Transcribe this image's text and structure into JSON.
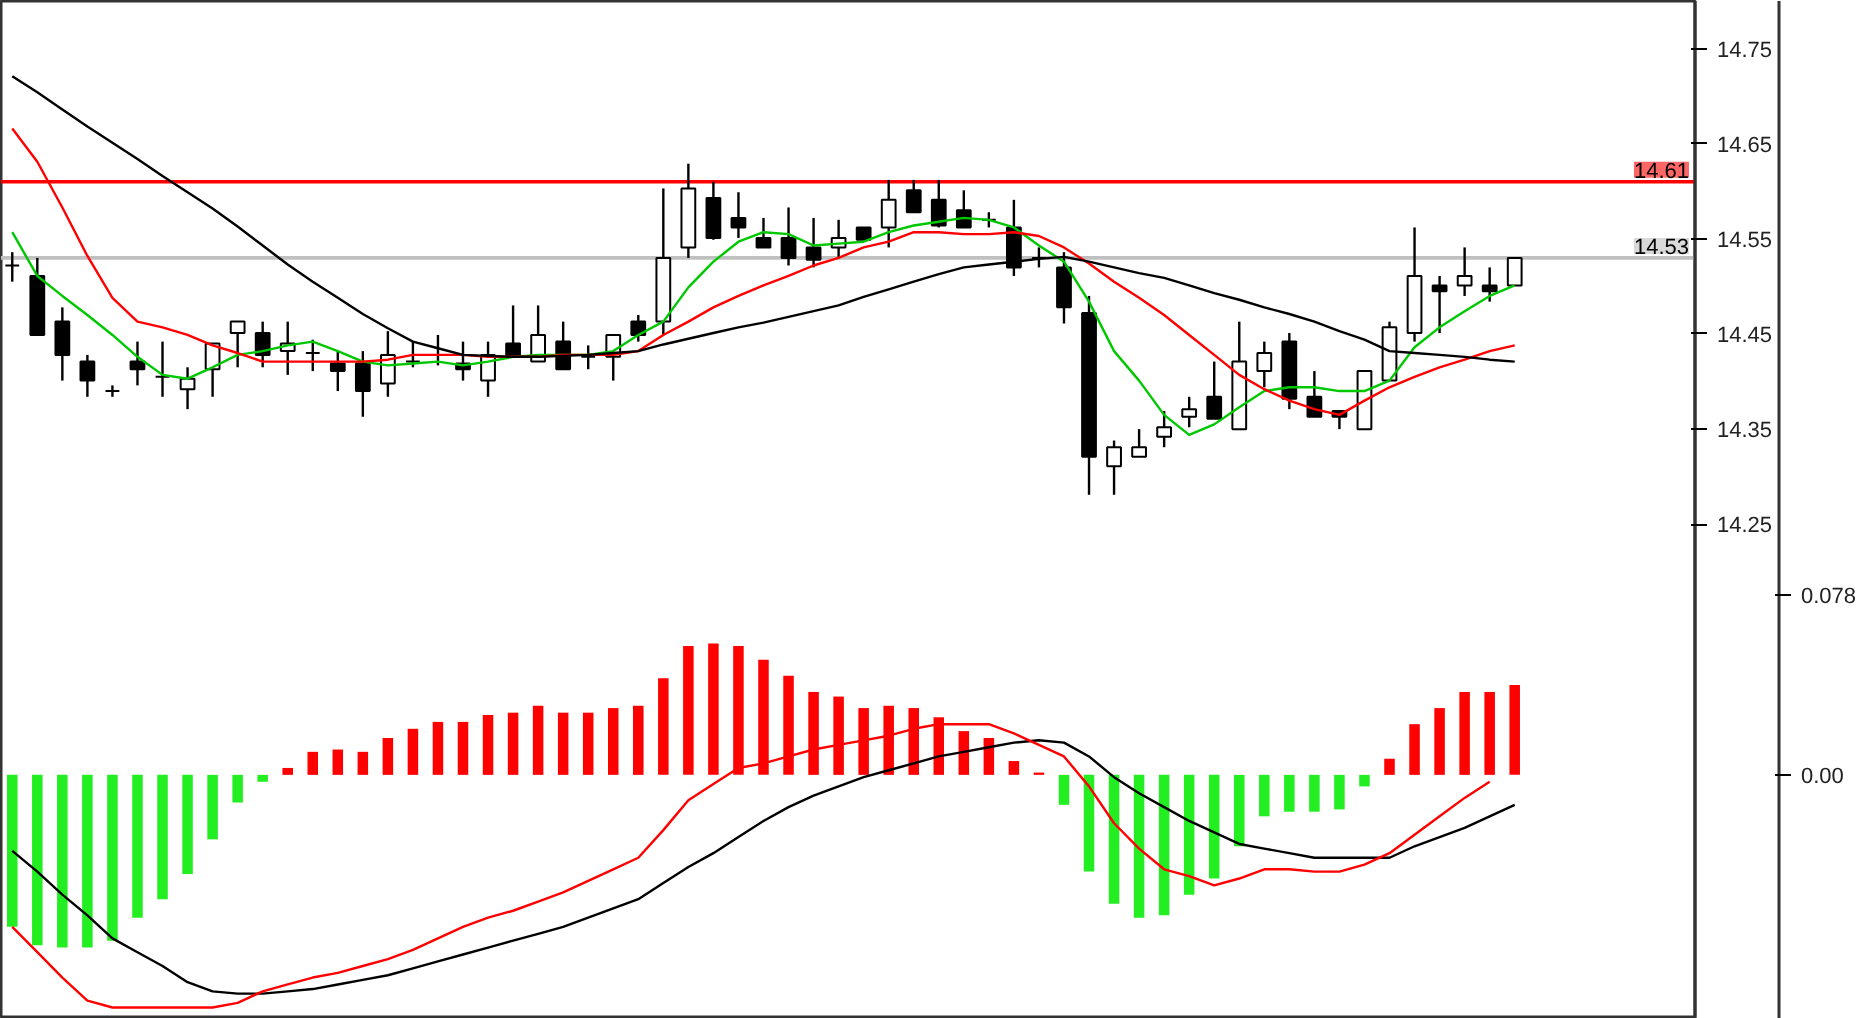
{
  "chart_data": {
    "type": "candlestick",
    "categories": [
      null,
      null,
      null,
      null,
      null,
      null,
      null,
      null,
      null,
      null,
      null,
      null,
      null,
      null,
      null,
      null,
      null,
      null,
      null,
      null,
      null,
      null,
      null,
      null,
      null,
      null,
      null,
      null,
      null,
      null,
      null,
      null,
      null,
      null,
      null,
      null,
      null,
      null,
      null,
      null,
      null,
      null,
      null,
      null,
      null,
      null,
      null,
      null,
      null,
      null,
      null,
      null,
      null,
      null,
      null,
      null,
      null,
      null,
      null,
      null,
      null
    ],
    "ohlc": [
      [
        14.522,
        14.536,
        14.505,
        14.522
      ],
      [
        14.511,
        14.53,
        14.449,
        14.449
      ],
      [
        14.463,
        14.478,
        14.401,
        14.428
      ],
      [
        14.421,
        14.428,
        14.384,
        14.401
      ],
      [
        14.39,
        14.396,
        14.384,
        14.39
      ],
      [
        14.421,
        14.442,
        14.396,
        14.413
      ],
      [
        14.405,
        14.442,
        14.384,
        14.405
      ],
      [
        14.392,
        14.415,
        14.371,
        14.403
      ],
      [
        14.413,
        14.44,
        14.384,
        14.44
      ],
      [
        14.451,
        14.463,
        14.415,
        14.463
      ],
      [
        14.451,
        14.463,
        14.415,
        14.428
      ],
      [
        14.432,
        14.463,
        14.407,
        14.44
      ],
      [
        14.43,
        14.444,
        14.411,
        14.43
      ],
      [
        14.419,
        14.432,
        14.39,
        14.411
      ],
      [
        14.419,
        14.432,
        14.363,
        14.39
      ],
      [
        14.398,
        14.453,
        14.384,
        14.428
      ],
      [
        14.421,
        14.442,
        14.415,
        14.421
      ],
      [
        14.428,
        14.449,
        14.417,
        14.428
      ],
      [
        14.419,
        14.442,
        14.401,
        14.413
      ],
      [
        14.401,
        14.442,
        14.384,
        14.428
      ],
      [
        14.44,
        14.48,
        14.428,
        14.428
      ],
      [
        14.421,
        14.48,
        14.421,
        14.449
      ],
      [
        14.442,
        14.463,
        14.413,
        14.413
      ],
      [
        14.426,
        14.438,
        14.413,
        14.426
      ],
      [
        14.426,
        14.449,
        14.401,
        14.449
      ],
      [
        14.463,
        14.47,
        14.442,
        14.449
      ],
      [
        14.463,
        14.603,
        14.449,
        14.53
      ],
      [
        14.541,
        14.629,
        14.53,
        14.603
      ],
      [
        14.593,
        14.61,
        14.549,
        14.551
      ],
      [
        14.572,
        14.599,
        14.551,
        14.562
      ],
      [
        14.551,
        14.572,
        14.541,
        14.541
      ],
      [
        14.551,
        14.583,
        14.522,
        14.53
      ],
      [
        14.541,
        14.572,
        14.52,
        14.528
      ],
      [
        14.541,
        14.57,
        14.53,
        14.551
      ],
      [
        14.562,
        14.562,
        14.549,
        14.549
      ],
      [
        14.562,
        14.612,
        14.541,
        14.591
      ],
      [
        14.601,
        14.612,
        14.578,
        14.578
      ],
      [
        14.591,
        14.612,
        14.562,
        14.564
      ],
      [
        14.58,
        14.601,
        14.562,
        14.562
      ],
      [
        14.57,
        14.578,
        14.562,
        14.57
      ],
      [
        14.562,
        14.591,
        14.511,
        14.52
      ],
      [
        14.53,
        14.541,
        14.52,
        14.53
      ],
      [
        14.52,
        14.536,
        14.461,
        14.478
      ],
      [
        14.472,
        14.49,
        14.281,
        14.321
      ],
      [
        14.311,
        14.338,
        14.281,
        14.331
      ],
      [
        14.321,
        14.35,
        14.321,
        14.331
      ],
      [
        14.342,
        14.369,
        14.331,
        14.352
      ],
      [
        14.363,
        14.384,
        14.352,
        14.371
      ],
      [
        14.384,
        14.421,
        14.361,
        14.361
      ],
      [
        14.35,
        14.463,
        14.35,
        14.421
      ],
      [
        14.411,
        14.442,
        14.394,
        14.43
      ],
      [
        14.442,
        14.451,
        14.371,
        14.382
      ],
      [
        14.384,
        14.411,
        14.363,
        14.363
      ],
      [
        14.369,
        14.369,
        14.35,
        14.363
      ],
      [
        14.35,
        14.411,
        14.35,
        14.411
      ],
      [
        14.401,
        14.463,
        14.401,
        14.457
      ],
      [
        14.451,
        14.562,
        14.442,
        14.511
      ],
      [
        14.501,
        14.511,
        14.451,
        14.495
      ],
      [
        14.501,
        14.541,
        14.49,
        14.511
      ],
      [
        14.501,
        14.52,
        14.484,
        14.495
      ],
      [
        14.501,
        14.53,
        14.501,
        14.53
      ]
    ],
    "series": [
      {
        "type": "line",
        "color": "#00c800",
        "values": [
          14.557,
          14.511,
          14.49,
          14.47,
          14.449,
          14.426,
          14.407,
          14.403,
          14.415,
          14.428,
          14.432,
          14.438,
          14.442,
          14.432,
          14.421,
          14.417,
          14.419,
          14.421,
          14.417,
          14.421,
          14.426,
          14.428,
          14.428,
          14.428,
          14.432,
          14.449,
          14.463,
          14.499,
          14.526,
          14.547,
          14.557,
          14.555,
          14.543,
          14.545,
          14.547,
          14.557,
          14.564,
          14.568,
          14.572,
          14.57,
          14.562,
          14.543,
          14.526,
          14.484,
          14.432,
          14.401,
          14.365,
          14.344,
          14.355,
          14.373,
          14.39,
          14.394,
          14.394,
          14.39,
          14.39,
          14.401,
          14.436,
          14.457,
          14.474,
          14.49,
          14.501
        ]
      },
      {
        "type": "line",
        "color": "#ff0000",
        "values": [
          14.666,
          14.631,
          14.583,
          14.532,
          14.488,
          14.463,
          14.457,
          14.449,
          14.438,
          14.43,
          14.421,
          14.421,
          14.421,
          14.421,
          14.421,
          14.423,
          14.428,
          14.428,
          14.428,
          14.426,
          14.426,
          14.426,
          14.428,
          14.428,
          14.428,
          14.432,
          14.449,
          14.463,
          14.478,
          14.49,
          14.501,
          14.511,
          14.522,
          14.53,
          14.541,
          14.547,
          14.557,
          14.557,
          14.555,
          14.555,
          14.557,
          14.553,
          14.541,
          14.524,
          14.505,
          14.488,
          14.47,
          14.449,
          14.428,
          14.407,
          14.392,
          14.38,
          14.371,
          14.365,
          14.38,
          14.394,
          14.405,
          14.415,
          14.423,
          14.432,
          14.438
        ]
      },
      {
        "type": "line",
        "color": "#000000",
        "values": [
          14.721,
          14.704,
          14.686,
          14.668,
          14.651,
          14.634,
          14.616,
          14.599,
          14.582,
          14.563,
          14.543,
          14.523,
          14.505,
          14.488,
          14.471,
          14.456,
          14.442,
          14.435,
          14.428,
          14.427,
          14.426,
          14.426,
          14.427,
          14.428,
          14.43,
          14.432,
          14.439,
          14.445,
          14.451,
          14.457,
          14.462,
          14.468,
          14.474,
          14.48,
          14.489,
          14.497,
          14.505,
          14.513,
          14.52,
          14.523,
          14.526,
          14.529,
          14.531,
          14.526,
          14.52,
          14.514,
          14.509,
          14.501,
          14.493,
          14.486,
          14.478,
          14.471,
          14.463,
          14.453,
          14.444,
          14.432,
          14.43,
          14.428,
          14.426,
          14.423,
          14.421
        ]
      },
      {
        "type": "bar",
        "axis": "y2",
        "values": [
          -0.066,
          -0.074,
          -0.075,
          -0.075,
          -0.072,
          -0.062,
          -0.054,
          -0.043,
          -0.028,
          -0.012,
          -0.003,
          0.003,
          0.01,
          0.011,
          0.01,
          0.016,
          0.02,
          0.023,
          0.023,
          0.026,
          0.027,
          0.03,
          0.027,
          0.027,
          0.029,
          0.03,
          0.042,
          0.056,
          0.057,
          0.056,
          0.05,
          0.043,
          0.036,
          0.034,
          0.029,
          0.03,
          0.029,
          0.025,
          0.019,
          0.016,
          0.006,
          0.001,
          -0.013,
          -0.042,
          -0.056,
          -0.062,
          -0.061,
          -0.052,
          -0.045,
          -0.031,
          -0.018,
          -0.016,
          -0.016,
          -0.015,
          -0.005,
          0.007,
          0.022,
          0.029,
          0.036,
          0.036,
          0.039
        ],
        "colors": [
          "#22ee22",
          "#22ee22",
          "#22ee22",
          "#22ee22",
          "#22ee22",
          "#22ee22",
          "#22ee22",
          "#22ee22",
          "#22ee22",
          "#22ee22",
          "#22ee22",
          "#ff0000",
          "#ff0000",
          "#ff0000",
          "#ff0000",
          "#ff0000",
          "#ff0000",
          "#ff0000",
          "#ff0000",
          "#ff0000",
          "#ff0000",
          "#ff0000",
          "#ff0000",
          "#ff0000",
          "#ff0000",
          "#ff0000",
          "#ff0000",
          "#ff0000",
          "#ff0000",
          "#ff0000",
          "#ff0000",
          "#ff0000",
          "#ff0000",
          "#ff0000",
          "#ff0000",
          "#ff0000",
          "#ff0000",
          "#ff0000",
          "#ff0000",
          "#ff0000",
          "#ff0000",
          "#ff0000",
          "#22ee22",
          "#22ee22",
          "#22ee22",
          "#22ee22",
          "#22ee22",
          "#22ee22",
          "#22ee22",
          "#22ee22",
          "#22ee22",
          "#22ee22",
          "#22ee22",
          "#22ee22",
          "#22ee22",
          "#ff0000",
          "#ff0000",
          "#ff0000",
          "#ff0000",
          "#ff0000",
          "#ff0000"
        ]
      },
      {
        "type": "line",
        "axis": "y2",
        "color": "#000000",
        "values": [
          -0.033,
          -0.042,
          -0.052,
          -0.061,
          -0.071,
          -0.077,
          -0.083,
          -0.09,
          -0.094,
          -0.095,
          -0.095,
          -0.094,
          -0.093,
          -0.091,
          -0.089,
          -0.087,
          -0.084,
          -0.081,
          -0.078,
          -0.075,
          -0.072,
          -0.069,
          -0.066,
          -0.062,
          -0.058,
          -0.054,
          -0.047,
          -0.04,
          -0.034,
          -0.027,
          -0.02,
          -0.014,
          -0.009,
          -0.005,
          -0.001,
          0.002,
          0.005,
          0.008,
          0.01,
          0.012,
          0.014,
          0.015,
          0.014,
          0.008,
          -0.001,
          -0.008,
          -0.014,
          -0.02,
          -0.025,
          -0.03,
          -0.032,
          -0.034,
          -0.036,
          -0.036,
          -0.036,
          -0.036,
          -0.031,
          -0.027,
          -0.023,
          -0.018,
          -0.013
        ]
      },
      {
        "type": "line",
        "axis": "y2",
        "color": "#ff0000",
        "values": [
          -0.066,
          -0.077,
          -0.088,
          -0.098,
          -0.101,
          -0.101,
          -0.101,
          -0.101,
          -0.101,
          -0.099,
          -0.094,
          -0.091,
          -0.088,
          -0.086,
          -0.083,
          -0.08,
          -0.076,
          -0.071,
          -0.066,
          -0.062,
          -0.059,
          -0.055,
          -0.051,
          -0.046,
          -0.041,
          -0.036,
          -0.024,
          -0.011,
          -0.004,
          0.003,
          0.005,
          0.008,
          0.011,
          0.013,
          0.015,
          0.017,
          0.02,
          0.022,
          0.022,
          0.022,
          0.018,
          0.013,
          0.008,
          -0.005,
          -0.021,
          -0.032,
          -0.041,
          -0.044,
          -0.048,
          -0.045,
          -0.041,
          -0.041,
          -0.042,
          -0.042,
          -0.039,
          -0.034,
          -0.026,
          -0.018,
          -0.01,
          -0.003,
          null
        ]
      }
    ],
    "ylim": [
      13.73,
      14.8
    ],
    "yticks": [
      14.25,
      14.35,
      14.45,
      14.55,
      14.65,
      14.75
    ],
    "y2lim": [
      -0.106,
      0.336
    ],
    "y2ticks": [
      0.078,
      {
        "value": 0,
        "label": "0.00"
      }
    ],
    "ref_lines": [
      {
        "axis": "y",
        "value": 14.61,
        "label": "14.61",
        "color": "#ff0000"
      },
      {
        "axis": "y",
        "value": 14.53,
        "label": "14.53",
        "color": "#c0c0c0"
      }
    ],
    "grid": false,
    "tick_labels": "y"
  }
}
